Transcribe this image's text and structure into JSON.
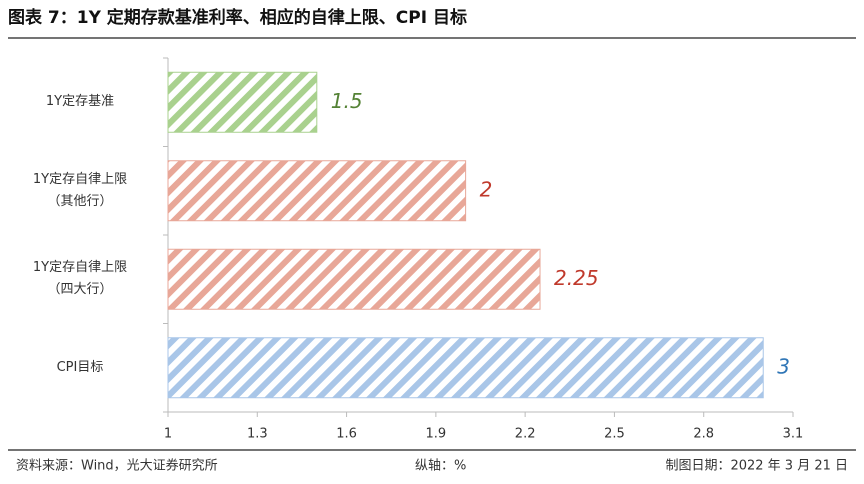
{
  "chart_data": {
    "type": "barh",
    "title": "图表 7：1Y 定期存款基准利率、相应的自律上限、CPI 目标",
    "categories": [
      "1Y定存基准",
      "1Y定存自律上限\n（其他行）",
      "1Y定存自律上限\n（四大行）",
      "CPI目标"
    ],
    "values": [
      1.5,
      2,
      2.25,
      3
    ],
    "colors": [
      "#a9d18e",
      "#e8a798",
      "#e8a798",
      "#a9c6e8"
    ],
    "label_colors": [
      "#548235",
      "#c0392b",
      "#c0392b",
      "#2e75b6"
    ],
    "xlim": [
      1,
      3.1
    ],
    "xticks": [
      1,
      1.3,
      1.6,
      1.9,
      2.2,
      2.5,
      2.8,
      3.1
    ],
    "source": "资料来源：Wind，光大证券研究所",
    "axis_note": "纵轴：%",
    "date": "制图日期：2022 年 3 月 21 日"
  }
}
